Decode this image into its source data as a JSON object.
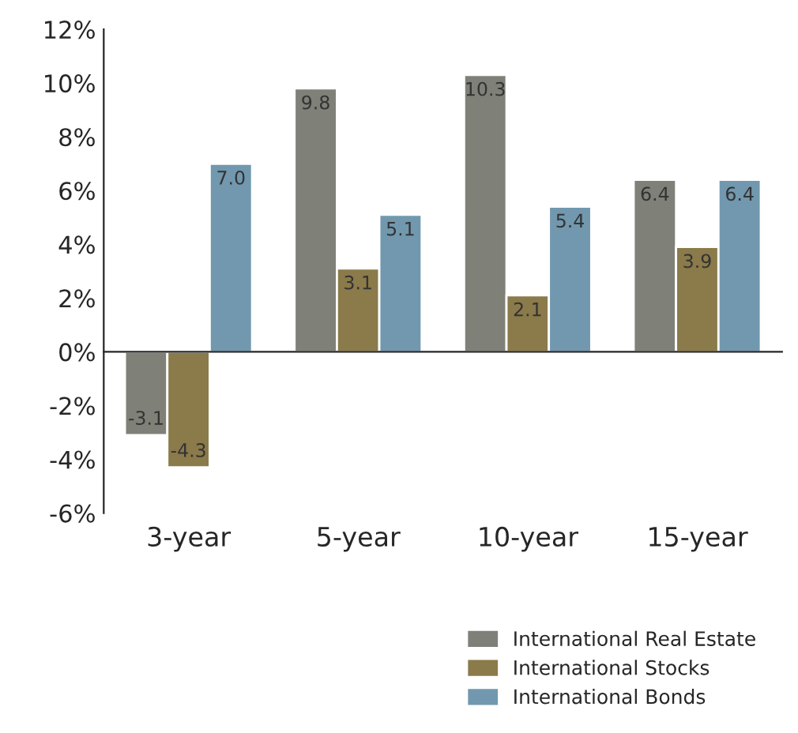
{
  "chart_data": {
    "type": "bar",
    "categories": [
      "3-year",
      "5-year",
      "10-year",
      "15-year"
    ],
    "series": [
      {
        "name": "International Real Estate",
        "color": "#7f8078",
        "values": [
          -3.1,
          9.8,
          10.3,
          6.4
        ],
        "value_labels": [
          "-3.1",
          "9.8",
          "10.3",
          "6.4"
        ]
      },
      {
        "name": "International Stocks",
        "color": "#8b7a4a",
        "values": [
          -4.3,
          3.1,
          2.1,
          3.9
        ],
        "value_labels": [
          "-4.3",
          "3.1",
          "2.1",
          "3.9"
        ]
      },
      {
        "name": "International Bonds",
        "color": "#7198ae",
        "values": [
          7.0,
          5.1,
          5.4,
          6.4
        ],
        "value_labels": [
          "7.0",
          "5.1",
          "5.4",
          "6.4"
        ]
      }
    ],
    "ylim": [
      -6,
      12
    ],
    "yticks": [
      {
        "value": -6,
        "label": "-6%"
      },
      {
        "value": -4,
        "label": "-4%"
      },
      {
        "value": -2,
        "label": "-2%"
      },
      {
        "value": 0,
        "label": "0%"
      },
      {
        "value": 2,
        "label": "2%"
      },
      {
        "value": 4,
        "label": "4%"
      },
      {
        "value": 6,
        "label": "6%"
      },
      {
        "value": 8,
        "label": "8%"
      },
      {
        "value": 10,
        "label": "10%"
      },
      {
        "value": 12,
        "label": "12%"
      }
    ],
    "legend": "bottom right"
  }
}
